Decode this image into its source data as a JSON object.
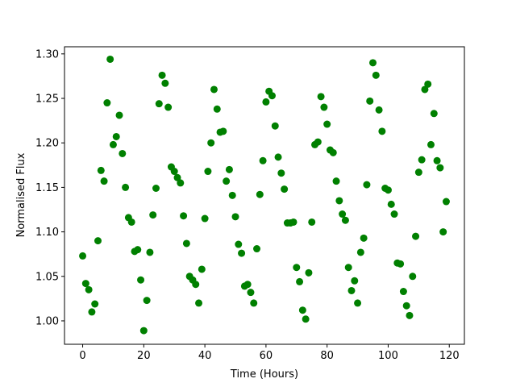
{
  "chart_data": {
    "type": "scatter",
    "xlabel": "Time (Hours)",
    "ylabel": "Normalised Flux",
    "color": "#008000",
    "x": [
      0,
      1,
      2,
      3,
      4,
      5,
      6,
      7,
      8,
      9,
      10,
      11,
      12,
      13,
      14,
      15,
      16,
      17,
      18,
      19,
      20,
      21,
      22,
      23,
      24,
      25,
      26,
      27,
      28,
      29,
      30,
      31,
      32,
      33,
      34,
      35,
      36,
      37,
      38,
      39,
      40,
      41,
      42,
      43,
      44,
      45,
      46,
      47,
      48,
      49,
      50,
      51,
      52,
      53,
      54,
      55,
      56,
      57,
      58,
      59,
      60,
      61,
      62,
      63,
      64,
      65,
      66,
      67,
      68,
      69,
      70,
      71,
      72,
      73,
      74,
      75,
      76,
      77,
      78,
      79,
      80,
      81,
      82,
      83,
      84,
      85,
      86,
      87,
      88,
      89,
      90,
      91,
      92,
      93,
      94,
      95,
      96,
      97,
      98,
      99,
      100,
      101,
      102,
      103,
      104,
      105,
      106,
      107,
      108,
      109,
      110,
      111,
      112,
      113,
      114,
      115,
      116,
      117,
      118,
      119
    ],
    "values": [
      1.073,
      1.042,
      1.035,
      1.01,
      1.019,
      1.09,
      1.169,
      1.157,
      1.245,
      1.294,
      1.198,
      1.207,
      1.231,
      1.188,
      1.15,
      1.116,
      1.111,
      1.078,
      1.08,
      1.046,
      0.989,
      1.023,
      1.077,
      1.119,
      1.149,
      1.244,
      1.276,
      1.267,
      1.24,
      1.173,
      1.168,
      1.161,
      1.155,
      1.118,
      1.087,
      1.05,
      1.046,
      1.041,
      1.02,
      1.058,
      1.115,
      1.168,
      1.2,
      1.26,
      1.238,
      1.212,
      1.213,
      1.157,
      1.17,
      1.141,
      1.117,
      1.086,
      1.076,
      1.039,
      1.041,
      1.032,
      1.02,
      1.081,
      1.142,
      1.18,
      1.246,
      1.258,
      1.253,
      1.219,
      1.184,
      1.166,
      1.148,
      1.11,
      1.11,
      1.111,
      1.06,
      1.044,
      1.012,
      1.002,
      1.054,
      1.111,
      1.198,
      1.201,
      1.252,
      1.24,
      1.221,
      1.192,
      1.189,
      1.157,
      1.135,
      1.12,
      1.113,
      1.06,
      1.034,
      1.045,
      1.02,
      1.077,
      1.093,
      1.153,
      1.247,
      1.29,
      1.276,
      1.237,
      1.213,
      1.149,
      1.147,
      1.131,
      1.12,
      1.065,
      1.064,
      1.033,
      1.017,
      1.006,
      1.05,
      1.095,
      1.167,
      1.181,
      1.26,
      1.266,
      1.198,
      1.233,
      1.18,
      1.172,
      1.1,
      1.134
    ],
    "xlim": [
      -5.95,
      124.95
    ],
    "xticks": [
      0,
      20,
      40,
      60,
      80,
      100,
      120
    ],
    "ylim": [
      0.9737,
      1.308
    ],
    "yticks": [
      {
        "value": 1.0,
        "label": "1.00"
      },
      1.05,
      {
        "value": 1.1,
        "label": "1.10"
      },
      1.15,
      {
        "value": 1.2,
        "label": "1.20"
      },
      1.25,
      {
        "value": 1.3,
        "label": "1.30"
      }
    ]
  }
}
